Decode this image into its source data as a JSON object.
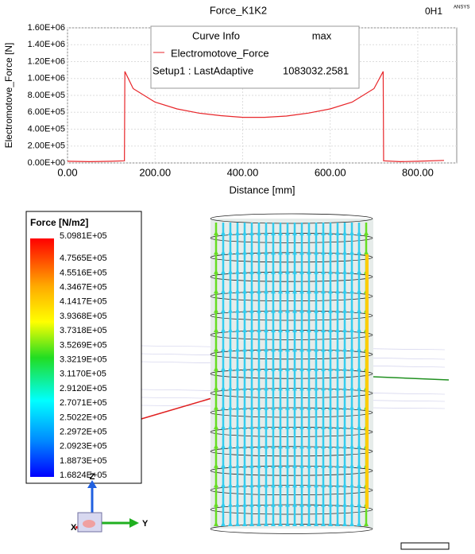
{
  "chart_data": {
    "type": "line",
    "title": "Force_K1K2",
    "corner_label": "0H1",
    "brand": "ANSYS",
    "x_label": "Distance [mm]",
    "y_label": "Electromotove_Force [N]",
    "x": [
      0,
      50,
      100,
      130,
      131,
      150,
      200,
      250,
      300,
      350,
      400,
      450,
      500,
      550,
      600,
      650,
      700,
      721,
      722,
      760,
      800,
      860
    ],
    "series": [
      {
        "name": "Electromotove_Force",
        "color": "#e8262a",
        "values": [
          20000,
          15000,
          20000,
          25000,
          1083032,
          880000,
          720000,
          640000,
          590000,
          560000,
          540000,
          540000,
          555000,
          590000,
          640000,
          720000,
          880000,
          1083032,
          25000,
          15000,
          20000,
          30000
        ]
      }
    ],
    "xlim": [
      0,
      889
    ],
    "ylim": [
      0,
      1600000
    ],
    "xticks": [
      {
        "value": 0,
        "label": "0.00"
      },
      {
        "value": 200,
        "label": "200.00"
      },
      {
        "value": 400,
        "label": "400.00"
      },
      {
        "value": 600,
        "label": "600.00"
      },
      {
        "value": 800,
        "label": "800.00"
      }
    ],
    "yticks": [
      {
        "value": 0,
        "label": "0.00E+00"
      },
      {
        "value": 200000,
        "label": "2.00E+05"
      },
      {
        "value": 400000,
        "label": "4.00E+05"
      },
      {
        "value": 600000,
        "label": "6.00E+05"
      },
      {
        "value": 800000,
        "label": "8.00E+05"
      },
      {
        "value": 1000000,
        "label": "1.00E+06"
      },
      {
        "value": 1200000,
        "label": "1.20E+06"
      },
      {
        "value": 1400000,
        "label": "1.40E+06"
      },
      {
        "value": 1600000,
        "label": "1.60E+06"
      }
    ],
    "grid": true,
    "curve_info": {
      "header": [
        "Curve Info",
        "max"
      ],
      "row": [
        "Setup1 : LastAdaptive",
        "1083032.2581"
      ]
    }
  },
  "field_plot": {
    "legend_title": "Force [N/m2]",
    "levels": [
      "5.0981E+05",
      "4.7565E+05",
      "4.5516E+05",
      "4.3467E+05",
      "4.1417E+05",
      "3.9368E+05",
      "3.7318E+05",
      "3.5269E+05",
      "3.3219E+05",
      "3.1170E+05",
      "2.9120E+05",
      "2.7071E+05",
      "2.5022E+05",
      "2.2972E+05",
      "2.0923E+05",
      "1.8873E+05",
      "1.6824E+05"
    ],
    "axes": {
      "z": "Z",
      "x": "X",
      "y": "Y"
    }
  }
}
